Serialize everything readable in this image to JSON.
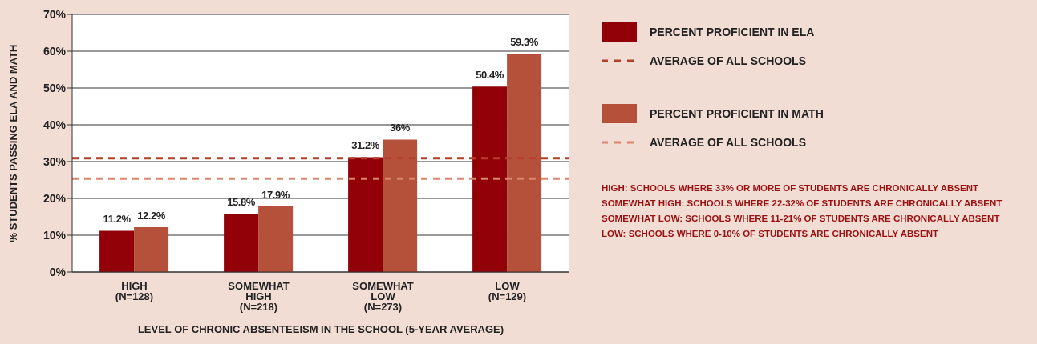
{
  "chart_data": {
    "type": "bar",
    "xlabel": "LEVEL OF CHRONIC ABSENTEEISM IN THE SCHOOL (5-YEAR AVERAGE)",
    "ylabel": "% STUDENTS PASSING ELA AND MATH",
    "categories": [
      "HIGH\n(N=128)",
      "SOMEWHAT\nHIGH\n(N=218)",
      "SOMEWHAT\nLOW\n(N=273)",
      "LOW\n(N=129)"
    ],
    "series": [
      {
        "name": "PERCENT PROFICIENT IN ELA",
        "color": "#920008",
        "values": [
          11.2,
          15.8,
          31.2,
          50.4
        ],
        "value_labels": [
          "11.2%",
          "15.8%",
          "31.2%",
          "50.4%"
        ]
      },
      {
        "name": "PERCENT PROFICIENT IN MATH",
        "color": "#b5503a",
        "values": [
          12.2,
          17.9,
          36,
          59.3
        ],
        "value_labels": [
          "12.2%",
          "17.9%",
          "36%",
          "59.3%"
        ]
      }
    ],
    "ylim": [
      0,
      70
    ],
    "yticks": [
      {
        "value": 0,
        "label": "0%"
      },
      {
        "value": 10,
        "label": "10%"
      },
      {
        "value": 20,
        "label": "20%"
      },
      {
        "value": 30,
        "label": "30%"
      },
      {
        "value": 40,
        "label": "40%"
      },
      {
        "value": 50,
        "label": "50%"
      },
      {
        "value": 60,
        "label": "60%"
      },
      {
        "value": 70,
        "label": "70%"
      }
    ],
    "grid": "y",
    "legend": "right",
    "ref_lines": [
      {
        "axis": "y",
        "value": 30.9,
        "label": "AVERAGE OF ALL SCHOOLS",
        "color": "#b4402c",
        "line_style": "dashed"
      },
      {
        "axis": "y",
        "value": 25.4,
        "label": "AVERAGE OF ALL SCHOOLS",
        "color": "#d9876d",
        "line_style": "dashed"
      }
    ],
    "annotations": [
      "HIGH: SCHOOLS WHERE 33% OR MORE OF STUDENTS ARE CHRONICALLY ABSENT",
      "SOMEWHAT HIGH: SCHOOLS WHERE 22-32% OF STUDENTS ARE CHRONICALLY ABSENT",
      "SOMEWHAT LOW: SCHOOLS WHERE 11-21% OF STUDENTS ARE CHRONICALLY ABSENT",
      "LOW: SCHOOLS WHERE 0-10% OF STUDENTS ARE CHRONICALLY ABSENT"
    ]
  }
}
